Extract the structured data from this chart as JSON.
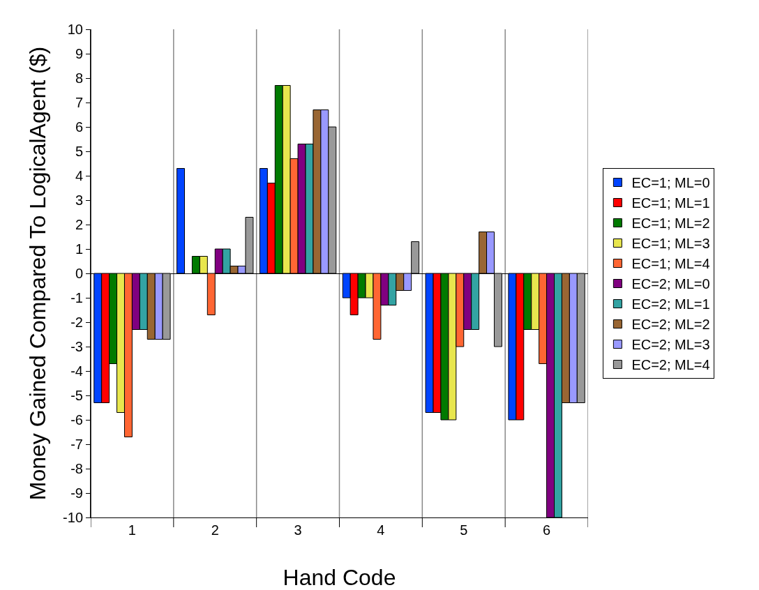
{
  "chart_data": {
    "type": "bar",
    "xlabel": "Hand Code",
    "ylabel": "Money Gained Compared To LogicalAgent ($)",
    "categories": [
      "1",
      "2",
      "3",
      "4",
      "5",
      "6"
    ],
    "series": [
      {
        "name": "EC=1; ML=0",
        "color": "#0044ff",
        "values": [
          -5.3,
          4.3,
          4.3,
          -1,
          -5.7,
          -6
        ]
      },
      {
        "name": "EC=1; ML=1",
        "color": "#ff0000",
        "values": [
          -5.3,
          null,
          3.7,
          -1.7,
          -5.7,
          -6
        ]
      },
      {
        "name": "EC=1; ML=2",
        "color": "#007a00",
        "values": [
          -3.7,
          0.7,
          7.7,
          -1,
          -6,
          -2.3
        ]
      },
      {
        "name": "EC=1; ML=3",
        "color": "#e8e64e",
        "values": [
          -5.7,
          0.7,
          7.7,
          -1,
          -6,
          -2.3
        ]
      },
      {
        "name": "EC=1; ML=4",
        "color": "#ff6633",
        "values": [
          -6.7,
          -1.7,
          4.7,
          -2.7,
          -3,
          -3.7
        ]
      },
      {
        "name": "EC=2; ML=0",
        "color": "#800080",
        "values": [
          -2.3,
          1,
          5.3,
          -1.3,
          -2.3,
          -10
        ]
      },
      {
        "name": "EC=2; ML=1",
        "color": "#33a3a3",
        "values": [
          -2.3,
          1,
          5.3,
          -1.3,
          -2.3,
          -10
        ]
      },
      {
        "name": "EC=2; ML=2",
        "color": "#996633",
        "values": [
          -2.7,
          0.3,
          6.7,
          -0.7,
          1.7,
          -5.3
        ]
      },
      {
        "name": "EC=2; ML=3",
        "color": "#9999ff",
        "values": [
          -2.7,
          0.3,
          6.7,
          -0.7,
          1.7,
          -5.3
        ]
      },
      {
        "name": "EC=2; ML=4",
        "color": "#999999",
        "values": [
          -2.7,
          2.3,
          6,
          1.3,
          -3,
          -5.3
        ]
      }
    ],
    "ylim": [
      -10,
      10
    ],
    "yticks": [
      -10,
      -9,
      -8,
      -7,
      -6,
      -5,
      -4,
      -3,
      -2,
      -1,
      0,
      1,
      2,
      3,
      4,
      5,
      6,
      7,
      8,
      9,
      10
    ],
    "grid": "x",
    "legend": "right"
  }
}
